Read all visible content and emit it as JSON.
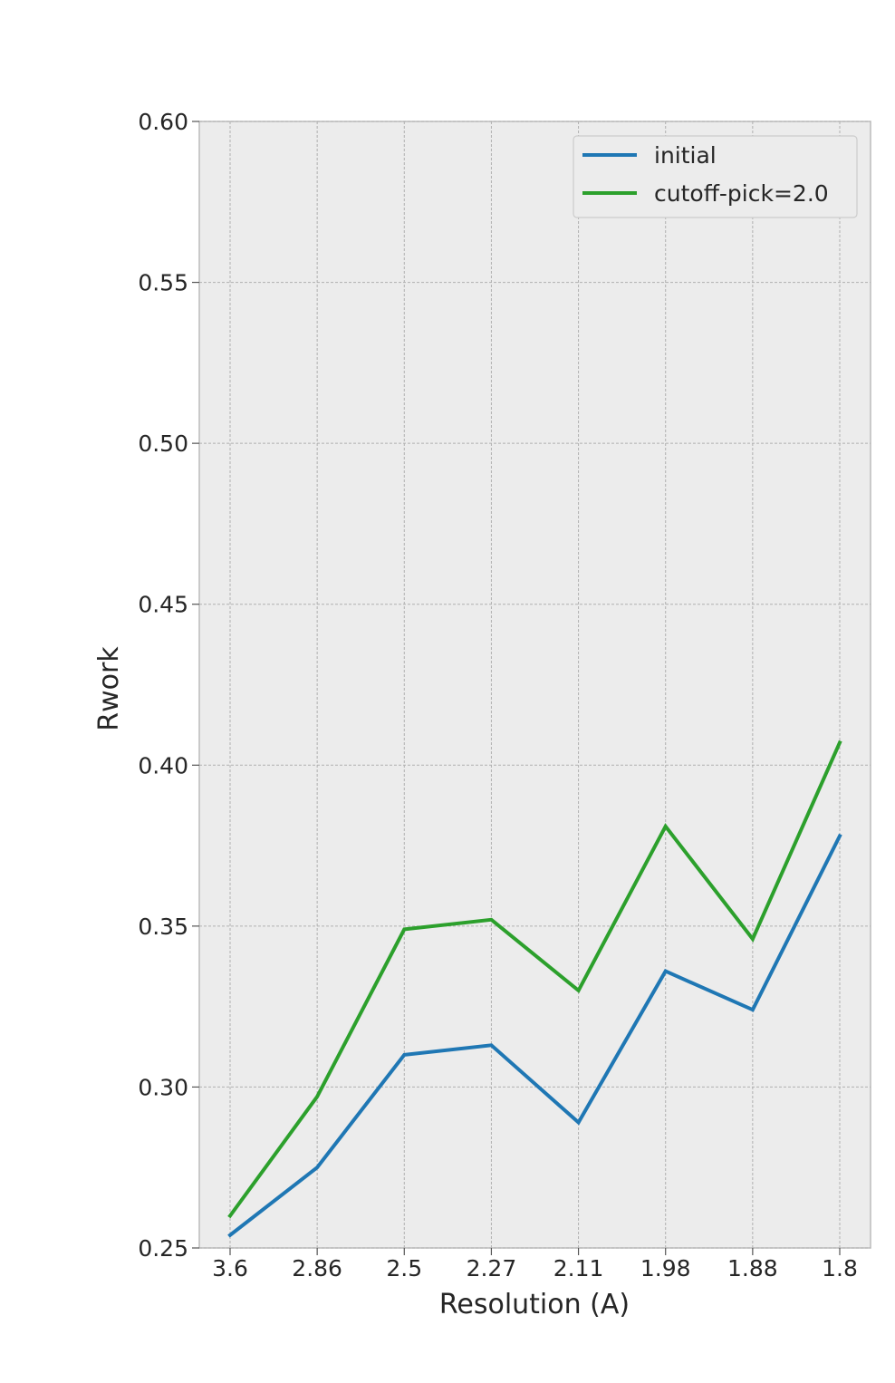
{
  "chart_data": {
    "type": "line",
    "title": "",
    "xlabel": "Resolution (A)",
    "ylabel": "Rwork",
    "categories": [
      "3.6",
      "2.86",
      "2.5",
      "2.27",
      "2.11",
      "1.98",
      "1.88",
      "1.8"
    ],
    "ylim": [
      0.25,
      0.6
    ],
    "yticks": [
      "0.25",
      "0.30",
      "0.35",
      "0.40",
      "0.45",
      "0.50",
      "0.55",
      "0.60"
    ],
    "grid": true,
    "legend_position": "top-right",
    "series": [
      {
        "name": "initial",
        "color": "#1f77b4",
        "values": [
          0.254,
          0.275,
          0.31,
          0.313,
          0.289,
          0.336,
          0.324,
          0.378
        ]
      },
      {
        "name": "cutoff-pick=2.0",
        "color": "#2ca02c",
        "values": [
          0.26,
          0.297,
          0.349,
          0.352,
          0.33,
          0.381,
          0.346,
          0.407
        ]
      }
    ]
  }
}
